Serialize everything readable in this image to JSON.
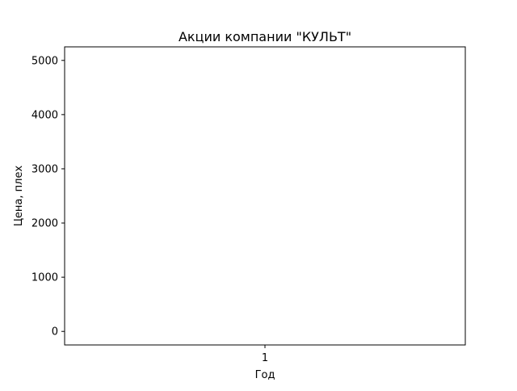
{
  "chart_data": {
    "type": "line",
    "title": "Акции компании \"КУЛЬТ\"",
    "xlabel": "Год",
    "ylabel": "Цена, плех",
    "x_ticks": [
      "1"
    ],
    "y_ticks": [
      0,
      1000,
      2000,
      3000,
      4000,
      5000
    ],
    "xlim": [
      0.95,
      1.05
    ],
    "ylim": [
      -250,
      5250
    ],
    "grid": false,
    "series": [
      {
        "x": [],
        "y": []
      }
    ]
  }
}
